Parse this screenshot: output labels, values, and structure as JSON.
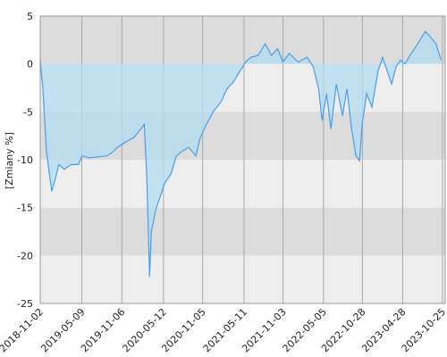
{
  "chart_data": {
    "type": "line",
    "y_label": "[Zmiany %]",
    "x": [
      "2018-11-02",
      "2018-11-14",
      "2018-11-30",
      "2018-12-24",
      "2019-01-09",
      "2019-01-25",
      "2019-02-18",
      "2019-03-22",
      "2019-04-24",
      "2019-05-10",
      "2019-06-11",
      "2019-07-21",
      "2019-08-30",
      "2019-09-20",
      "2019-10-18",
      "2019-11-19",
      "2019-12-29",
      "2020-01-30",
      "2020-02-15",
      "2020-02-27",
      "2020-03-10",
      "2020-03-18",
      "2020-04-07",
      "2020-04-28",
      "2020-05-18",
      "2020-06-15",
      "2020-07-09",
      "2020-08-06",
      "2020-09-03",
      "2020-10-05",
      "2020-10-25",
      "2020-11-22",
      "2020-12-25",
      "2021-01-26",
      "2021-02-23",
      "2021-03-23",
      "2021-04-24",
      "2021-05-18",
      "2021-06-11",
      "2021-07-14",
      "2021-08-15",
      "2021-09-12",
      "2021-10-10",
      "2021-11-03",
      "2021-12-01",
      "2022-01-11",
      "2022-02-20",
      "2022-03-20",
      "2022-04-13",
      "2022-04-29",
      "2022-05-19",
      "2022-06-08",
      "2022-07-02",
      "2022-07-30",
      "2022-08-19",
      "2022-09-09",
      "2022-09-29",
      "2022-10-15",
      "2022-10-27",
      "2022-11-16",
      "2022-12-10",
      "2023-01-07",
      "2023-01-27",
      "2023-02-16",
      "2023-03-09",
      "2023-03-29",
      "2023-04-18",
      "2023-05-08",
      "2023-06-05",
      "2023-06-29",
      "2023-07-15",
      "2023-08-08",
      "2023-09-01",
      "2023-09-25",
      "2023-10-19"
    ],
    "values": [
      0.4,
      -2.6,
      -9.1,
      -13.3,
      -12,
      -10.5,
      -11,
      -10.5,
      -10.5,
      -9.6,
      -9.8,
      -9.7,
      -9.6,
      -9.3,
      -8.7,
      -8.2,
      -7.7,
      -6.8,
      -6.3,
      -12,
      -22.2,
      -17.5,
      -15.2,
      -13.8,
      -12.4,
      -11.5,
      -9.6,
      -9.1,
      -8.7,
      -9.6,
      -7.7,
      -6.3,
      -4.9,
      -4,
      -2.6,
      -1.9,
      -0.7,
      0.2,
      0.7,
      0.9,
      2.1,
      0.9,
      1.6,
      0.2,
      1.1,
      0.2,
      0.7,
      -0.3,
      -2.6,
      -5.9,
      -3.1,
      -6.8,
      -2.1,
      -5.4,
      -2.6,
      -6.8,
      -9.6,
      -10.1,
      -6.3,
      -3.1,
      -4.5,
      -0.7,
      0.7,
      -0.7,
      -2.1,
      -0.3,
      0.4,
      0,
      1.1,
      1.9,
      2.5,
      3.4,
      2.8,
      2.1,
      0.4
    ],
    "color": "#4a9de8",
    "fill_color": "#b3dcf0",
    "xlim": [
      "2018-11-02",
      "2023-10-25"
    ],
    "xticks": [
      "2018-11-02",
      "2019-05-09",
      "2019-11-06",
      "2020-05-12",
      "2020-11-05",
      "2021-05-11",
      "2021-11-03",
      "2022-05-05",
      "2022-10-28",
      "2023-04-28",
      "2023-10-25"
    ],
    "ylim": [
      -25,
      5
    ],
    "yticks": [
      5,
      0,
      -5,
      -10,
      -15,
      -20,
      -25
    ],
    "band_colors": [
      "#dcdcdc",
      "#eeeeee"
    ],
    "grid": true
  }
}
